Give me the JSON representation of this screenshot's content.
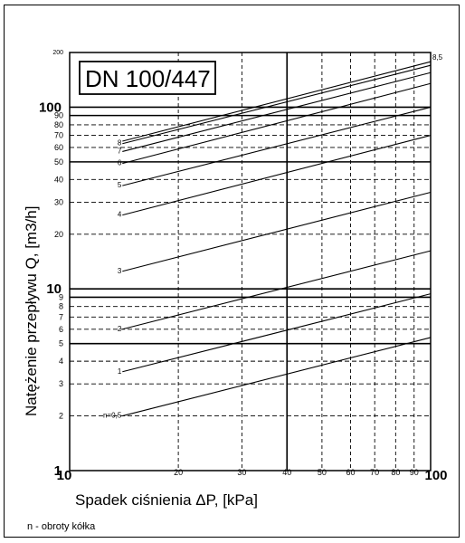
{
  "chart_data": {
    "type": "line",
    "title": "DN 100/447",
    "xlabel": "Spadek ciśnienia  ΔP, [kPa]",
    "ylabel": "Natężenie przepływu  Q, [m3/h]",
    "x_scale": "log",
    "y_scale": "log",
    "xlim": [
      10,
      100
    ],
    "ylim": [
      1,
      200
    ],
    "grid": true,
    "x_ticks": [
      {
        "v": 10,
        "label": "10",
        "major": true
      },
      {
        "v": 20,
        "label": "20",
        "major": false
      },
      {
        "v": 30,
        "label": "30",
        "major": false
      },
      {
        "v": 40,
        "label": "40",
        "major": false
      },
      {
        "v": 50,
        "label": "50",
        "major": false
      },
      {
        "v": 60,
        "label": "60",
        "major": false
      },
      {
        "v": 70,
        "label": "70",
        "major": false
      },
      {
        "v": 80,
        "label": "80",
        "major": false
      },
      {
        "v": 90,
        "label": "90",
        "major": false
      },
      {
        "v": 100,
        "label": "100",
        "major": true
      }
    ],
    "y_ticks": [
      {
        "v": 1,
        "label": "1",
        "major": true
      },
      {
        "v": 2,
        "label": "2",
        "major": false
      },
      {
        "v": 3,
        "label": "3",
        "major": false
      },
      {
        "v": 4,
        "label": "4",
        "major": false
      },
      {
        "v": 5,
        "label": "5",
        "major": false
      },
      {
        "v": 6,
        "label": "6",
        "major": false
      },
      {
        "v": 7,
        "label": "7",
        "major": false
      },
      {
        "v": 8,
        "label": "8",
        "major": false
      },
      {
        "v": 9,
        "label": "9",
        "major": false
      },
      {
        "v": 10,
        "label": "10",
        "major": true
      },
      {
        "v": 20,
        "label": "20",
        "major": false
      },
      {
        "v": 30,
        "label": "30",
        "major": false
      },
      {
        "v": 40,
        "label": "40",
        "major": false
      },
      {
        "v": 50,
        "label": "50",
        "major": false
      },
      {
        "v": 60,
        "label": "60",
        "major": false
      },
      {
        "v": 70,
        "label": "70",
        "major": false
      },
      {
        "v": 80,
        "label": "80",
        "major": false
      },
      {
        "v": 90,
        "label": "90",
        "major": false
      },
      {
        "v": 100,
        "label": "100",
        "major": true
      },
      {
        "v": 200,
        "label": "200",
        "major": false
      }
    ],
    "series": [
      {
        "name": "n=0,5",
        "x": [
          14,
          100
        ],
        "y": [
          2.0,
          5.4
        ]
      },
      {
        "name": "1",
        "x": [
          14,
          100
        ],
        "y": [
          3.5,
          9.4
        ]
      },
      {
        "name": "2",
        "x": [
          14,
          100
        ],
        "y": [
          6.0,
          16.2
        ]
      },
      {
        "name": "3",
        "x": [
          14,
          100
        ],
        "y": [
          12.5,
          34
        ]
      },
      {
        "name": "4",
        "x": [
          14,
          100
        ],
        "y": [
          25.5,
          70
        ]
      },
      {
        "name": "5",
        "x": [
          14,
          100
        ],
        "y": [
          37,
          100
        ]
      },
      {
        "name": "6",
        "x": [
          14,
          100
        ],
        "y": [
          49,
          135
        ]
      },
      {
        "name": "7",
        "x": [
          14,
          100
        ],
        "y": [
          57,
          155
        ]
      },
      {
        "name": "8",
        "x": [
          14,
          100
        ],
        "y": [
          63,
          170
        ]
      },
      {
        "name": "8,5",
        "x": [
          14,
          100
        ],
        "y": [
          65,
          178
        ]
      }
    ]
  },
  "footer": {
    "note": "n - obroty kółka"
  }
}
